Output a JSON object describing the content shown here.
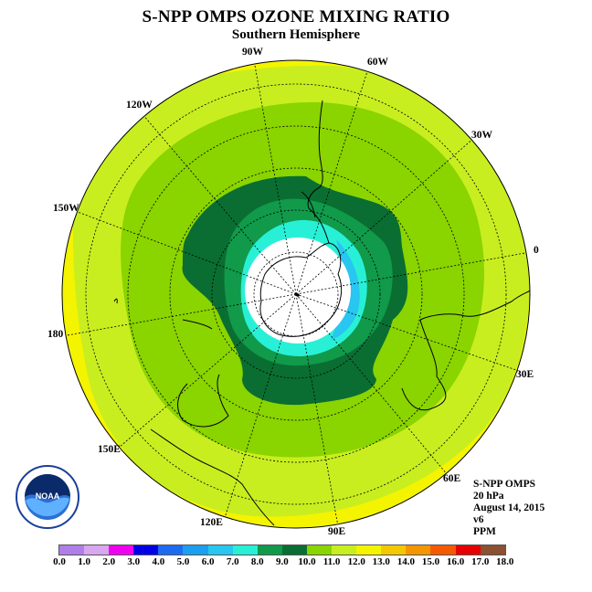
{
  "title": "S-NPP OMPS OZONE MIXING RATIO",
  "subtitle": "Southern Hemisphere",
  "longitude_labels": [
    "90W",
    "60W",
    "120W",
    "30W",
    "150W",
    "0",
    "180",
    "30E",
    "150E",
    "60E",
    "120E",
    "90E"
  ],
  "info": {
    "instrument": "S-NPP OMPS",
    "level": "20 hPa",
    "date": "August 14, 2015",
    "version": "v6",
    "units": "PPM"
  },
  "legend": {
    "ticks": [
      "0.0",
      "1.0",
      "2.0",
      "3.0",
      "4.0",
      "5.0",
      "6.0",
      "7.0",
      "8.0",
      "9.0",
      "10.0",
      "11.0",
      "12.0",
      "13.0",
      "14.0",
      "15.0",
      "16.0",
      "17.0",
      "18.0"
    ],
    "colors": [
      "#b07ee8",
      "#d9a6f0",
      "#f000f0",
      "#0000e6",
      "#1c6cf2",
      "#1c9ff0",
      "#28c6f0",
      "#28f0d6",
      "#109a4a",
      "#0a6e32",
      "#8ad400",
      "#c8ee20",
      "#f4f400",
      "#f4c800",
      "#f49600",
      "#f45a00",
      "#e60000",
      "#8c5032"
    ]
  },
  "logo": {
    "text": "NOAA"
  }
}
